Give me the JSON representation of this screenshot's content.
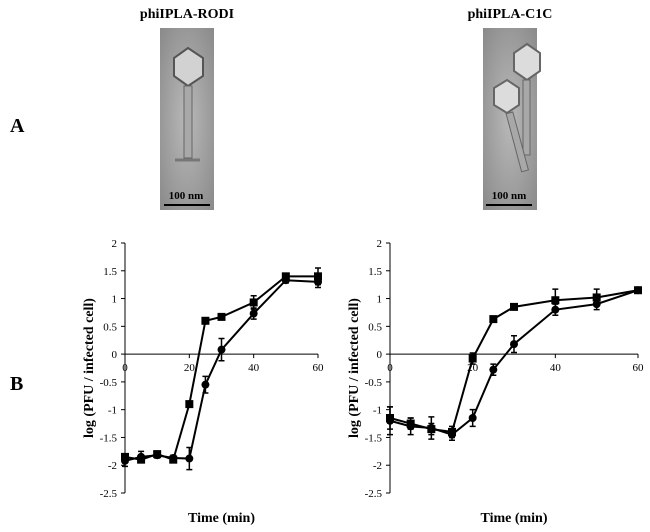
{
  "figure": {
    "panel_labels": [
      "A",
      "B"
    ],
    "micrographs": [
      {
        "title": "phiIPLA-RODI",
        "scale_bar": "100 nm"
      },
      {
        "title": "phiIPLA-C1C",
        "scale_bar": "100 nm"
      }
    ]
  },
  "chart_data": [
    {
      "type": "line",
      "x_label": "Time (min)",
      "y_label": "log (PFU / infected cell)",
      "xlim": [
        0,
        60
      ],
      "xticks": [
        0,
        20,
        40,
        60
      ],
      "ylim": [
        -2.5,
        2
      ],
      "yticks": [
        -2.5,
        -2,
        -1.5,
        -1,
        -0.5,
        0,
        0.5,
        1,
        1.5,
        2
      ],
      "x": [
        0,
        5,
        10,
        15,
        20,
        25,
        30,
        40,
        50,
        60
      ],
      "series": [
        {
          "color": "#000000",
          "marker": "square",
          "values": [
            -1.85,
            -1.9,
            -1.8,
            -1.9,
            -0.9,
            0.6,
            0.67,
            0.93,
            1.4,
            1.4
          ],
          "errors": [
            0.05,
            0.05,
            0.05,
            0.05,
            0.05,
            0.03,
            0.03,
            0.12,
            0.05,
            0.15
          ]
        },
        {
          "color": "#000000",
          "marker": "circle",
          "values": [
            -1.92,
            -1.85,
            -1.82,
            -1.87,
            -1.88,
            -0.55,
            0.08,
            0.73,
            1.33,
            1.3
          ],
          "errors": [
            0.1,
            0.1,
            0.05,
            0.05,
            0.2,
            0.15,
            0.2,
            0.1,
            0.05,
            0.1
          ]
        }
      ]
    },
    {
      "type": "line",
      "x_label": "Time (min)",
      "y_label": "log (PFU / infected cell)",
      "xlim": [
        0,
        60
      ],
      "xticks": [
        0,
        20,
        40,
        60
      ],
      "ylim": [
        -2.5,
        2
      ],
      "yticks": [
        -2.5,
        -2,
        -1.5,
        -1,
        -0.5,
        0,
        0.5,
        1,
        1.5,
        2
      ],
      "x": [
        0,
        5,
        10,
        15,
        20,
        25,
        30,
        40,
        50,
        60
      ],
      "series": [
        {
          "color": "#000000",
          "marker": "square",
          "values": [
            -1.15,
            -1.25,
            -1.35,
            -1.4,
            -0.08,
            0.63,
            0.85,
            0.97,
            1.02,
            1.15
          ],
          "errors": [
            0.2,
            0.1,
            0.1,
            0.1,
            0.1,
            0.03,
            0.05,
            0.2,
            0.15,
            0.03
          ]
        },
        {
          "color": "#000000",
          "marker": "circle",
          "values": [
            -1.2,
            -1.3,
            -1.33,
            -1.45,
            -1.15,
            -0.28,
            0.18,
            0.8,
            0.9,
            1.15
          ],
          "errors": [
            0.25,
            0.15,
            0.2,
            0.1,
            0.15,
            0.1,
            0.15,
            0.1,
            0.1,
            0.03
          ]
        }
      ]
    }
  ]
}
